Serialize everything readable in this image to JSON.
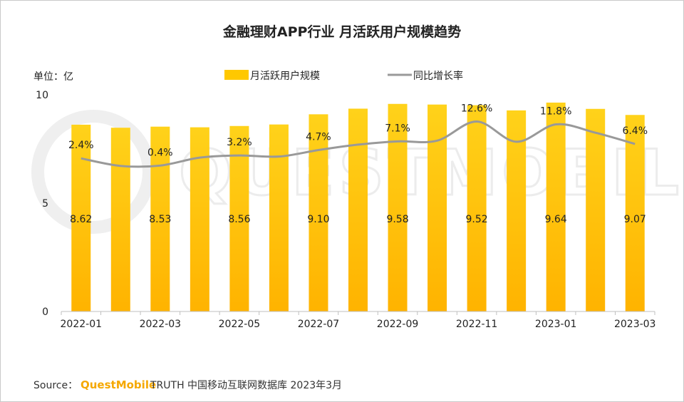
{
  "chart_data": {
    "type": "bar",
    "title": "金融理财APP行业 月活跃用户规模趋势",
    "unit_label": "单位：亿",
    "categories": [
      "2022-01",
      "2022-02",
      "2022-03",
      "2022-04",
      "2022-05",
      "2022-06",
      "2022-07",
      "2022-08",
      "2022-09",
      "2022-10",
      "2022-11",
      "2022-12",
      "2023-01",
      "2023-02",
      "2023-03"
    ],
    "x_tick_labels": [
      "2022-01",
      "2022-03",
      "2022-05",
      "2022-07",
      "2022-09",
      "2022-11",
      "2023-01",
      "2023-03"
    ],
    "y_ticks": [
      "0",
      "5",
      "10"
    ],
    "ylim": [
      0,
      10
    ],
    "series": [
      {
        "name": "月活跃用户规模",
        "type": "bar",
        "color": "#FFC800",
        "values": [
          8.62,
          8.48,
          8.53,
          8.5,
          8.56,
          8.63,
          9.1,
          9.36,
          9.58,
          9.55,
          9.52,
          9.28,
          9.64,
          9.35,
          9.07
        ],
        "data_labels": [
          "8.62",
          null,
          "8.53",
          null,
          "8.56",
          null,
          "9.10",
          null,
          "9.58",
          null,
          "9.52",
          null,
          "9.64",
          null,
          "9.07"
        ]
      },
      {
        "name": "同比增长率",
        "type": "line",
        "color": "#999999",
        "values": [
          2.4,
          0.3,
          0.4,
          2.6,
          3.2,
          2.9,
          4.7,
          6.2,
          7.1,
          7.3,
          12.6,
          7.0,
          11.8,
          9.5,
          6.4
        ],
        "display_range": [
          -40,
          20
        ],
        "data_labels": [
          "2.4%",
          null,
          "0.4%",
          null,
          "3.2%",
          null,
          "4.7%",
          null,
          "7.1%",
          null,
          "12.6%",
          null,
          "11.8%",
          null,
          "6.4%"
        ]
      }
    ],
    "legend": {
      "position": "top-center"
    },
    "watermark": "QUESTMOBILE"
  },
  "source": {
    "prefix": "Source：",
    "brand": "QuestMobile",
    "rest": "TRUTH 中国移动互联网数据库 2023年3月"
  }
}
